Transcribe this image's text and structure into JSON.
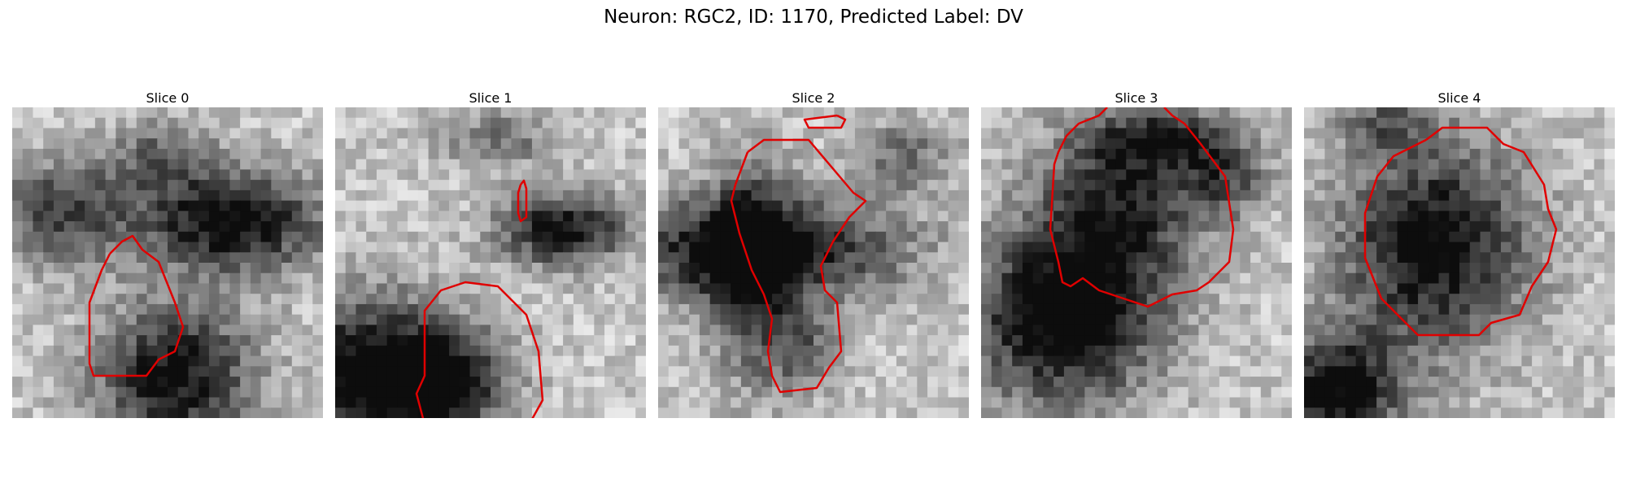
{
  "suptitle": "Neuron: RGC2, ID: 1170, Predicted Label: DV",
  "panels": [
    {
      "title": "Slice 0"
    },
    {
      "title": "Slice 1"
    },
    {
      "title": "Slice 2"
    },
    {
      "title": "Slice 3"
    },
    {
      "title": "Slice 4"
    }
  ],
  "contour_color": "#e00000"
}
